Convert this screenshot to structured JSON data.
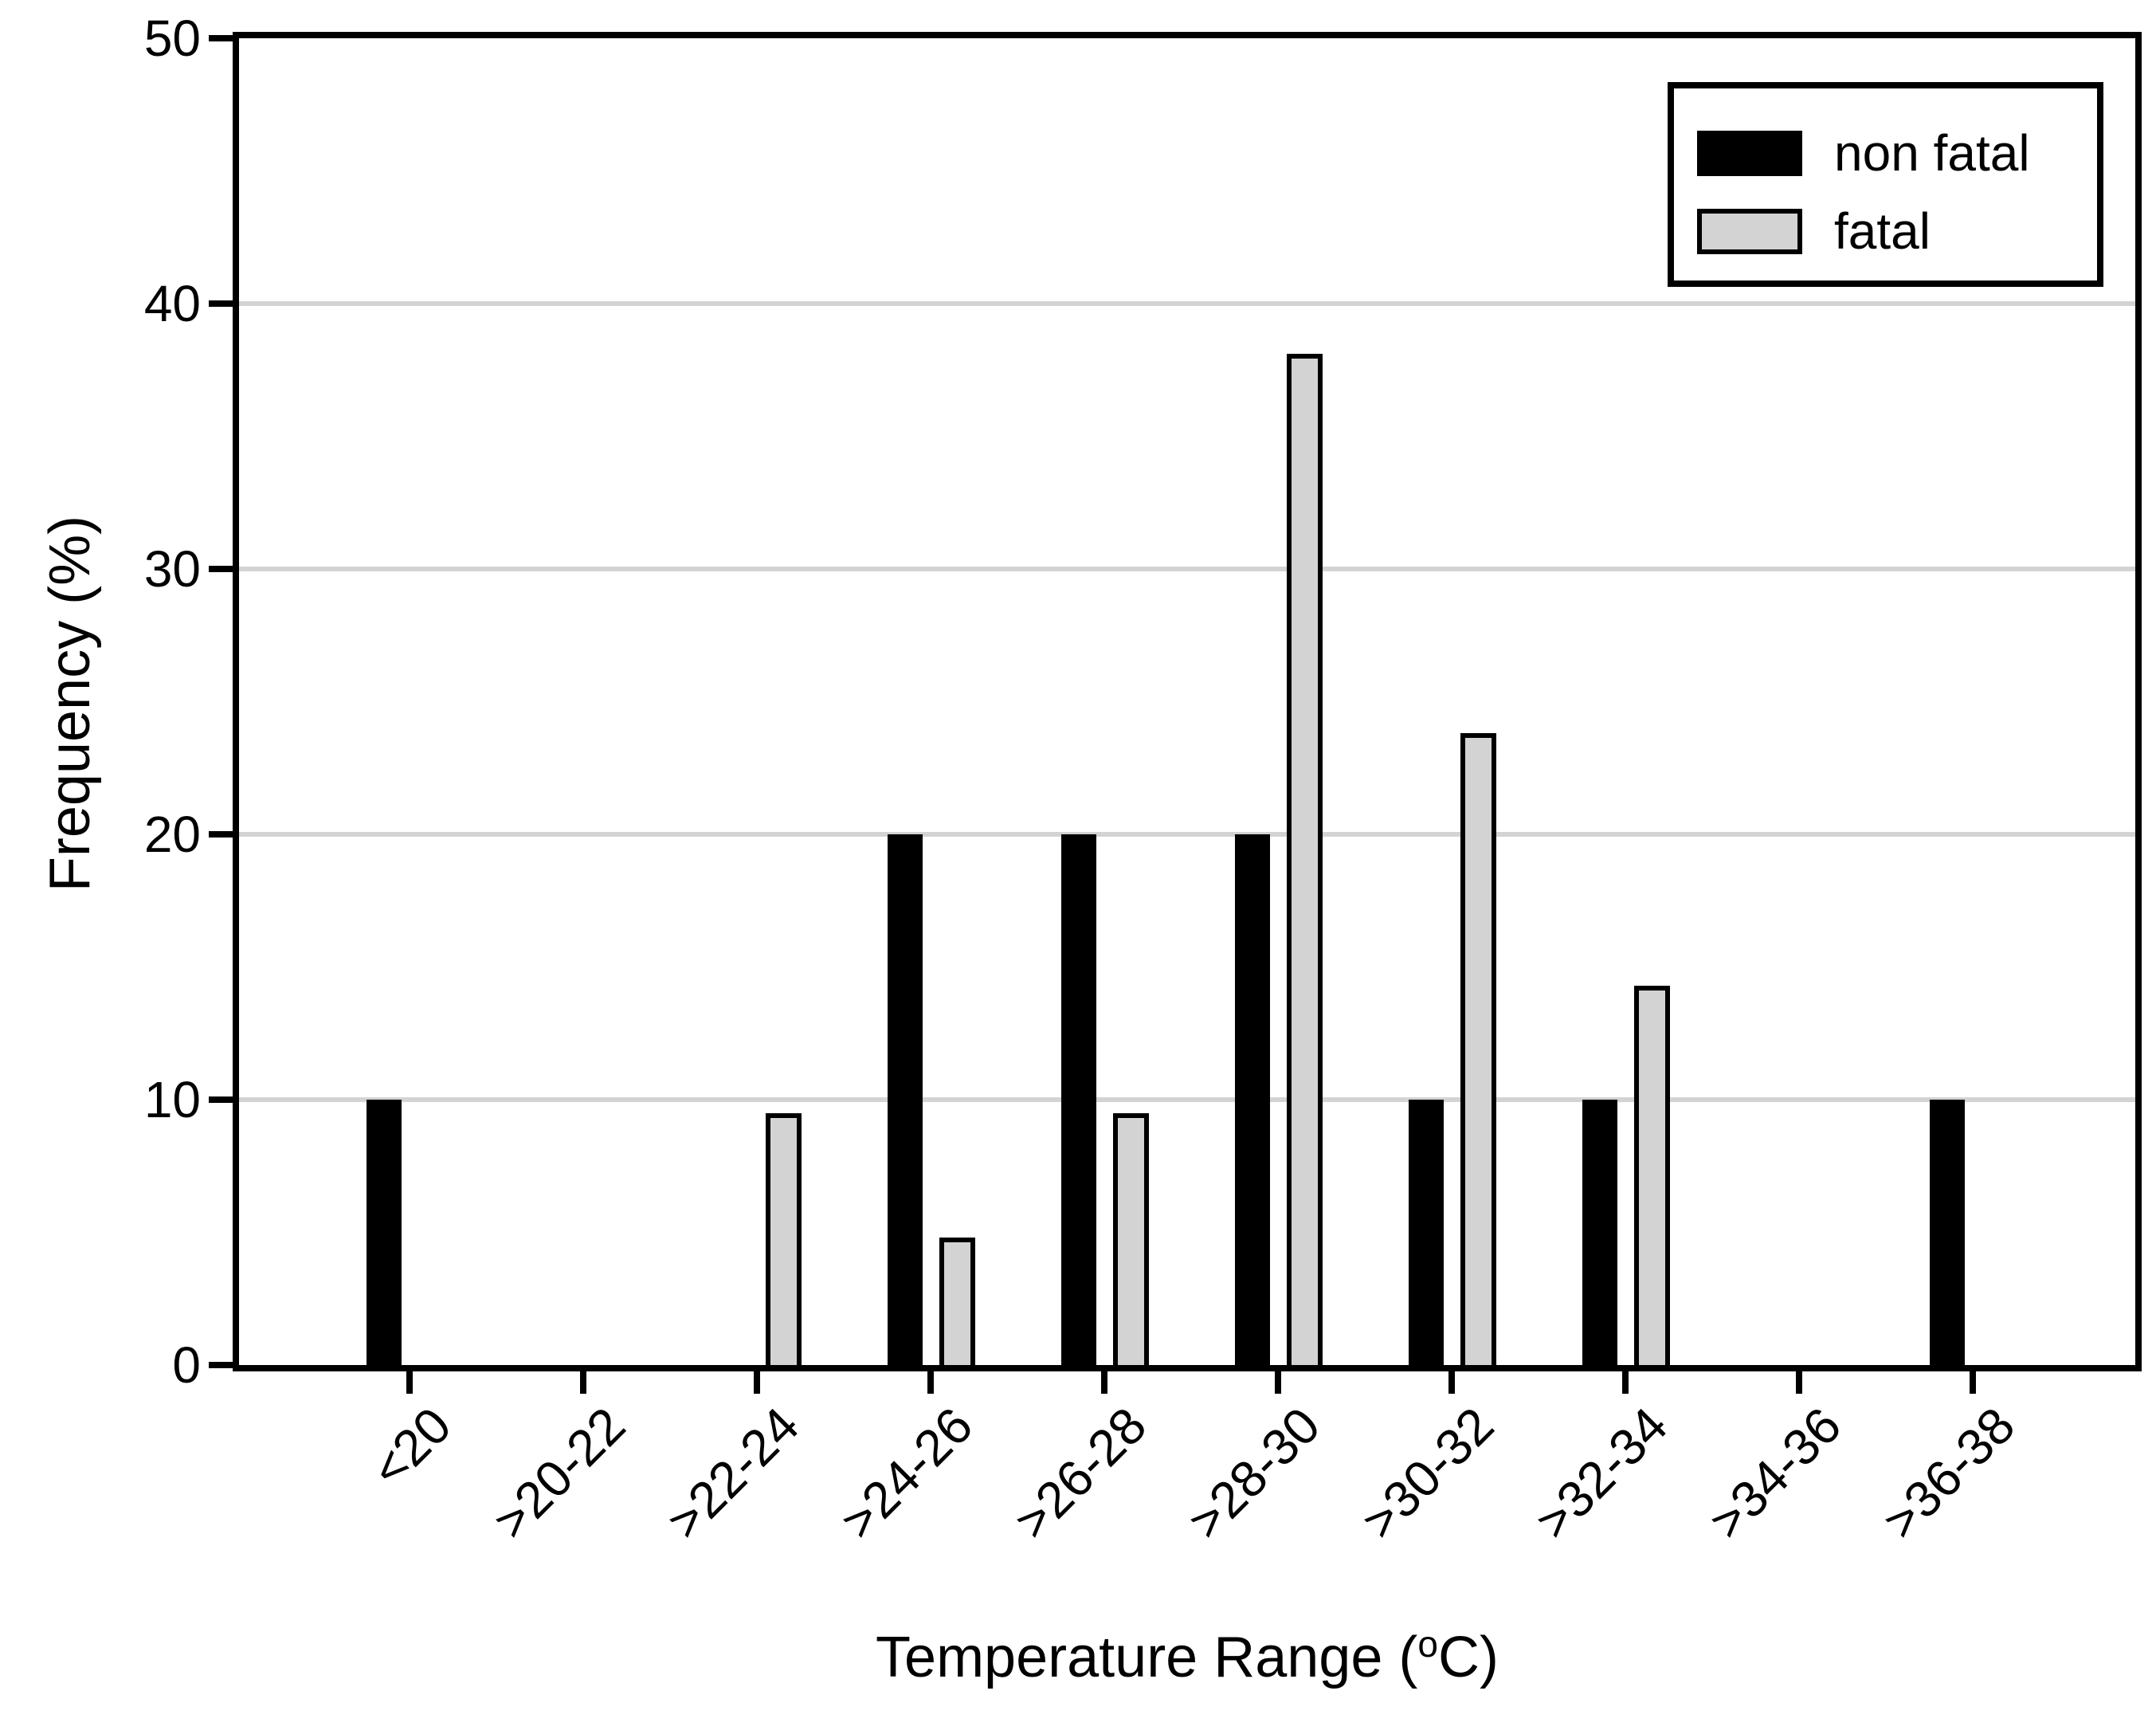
{
  "chart_data": {
    "type": "bar",
    "title": "",
    "xlabel": "Temperature Range (°C)",
    "xlabel_parts": {
      "pre": "Temperature Range (",
      "sup": "o",
      "post": "C)"
    },
    "ylabel": "Frequency (%)",
    "categories": [
      "<20",
      ">20-22",
      ">22-24",
      ">24-26",
      ">26-28",
      ">28-30",
      ">30-32",
      ">32-34",
      ">34-36",
      ">36-38"
    ],
    "series": [
      {
        "name": "non fatal",
        "color": "#000000",
        "values": [
          10,
          0,
          0,
          20,
          20,
          20,
          10,
          10,
          0,
          10
        ]
      },
      {
        "name": "fatal",
        "color": "#d3d3d3",
        "values": [
          0,
          0,
          9.5,
          4.8,
          9.5,
          38.1,
          23.8,
          14.3,
          0,
          0
        ]
      }
    ],
    "ylim": [
      0,
      50
    ],
    "yticks": [
      0,
      10,
      20,
      30,
      40,
      50
    ],
    "grid": "horizontal",
    "gridline_color": "#d3d3d3",
    "legend_position": "top-right",
    "legend": [
      "non fatal",
      "fatal"
    ]
  }
}
